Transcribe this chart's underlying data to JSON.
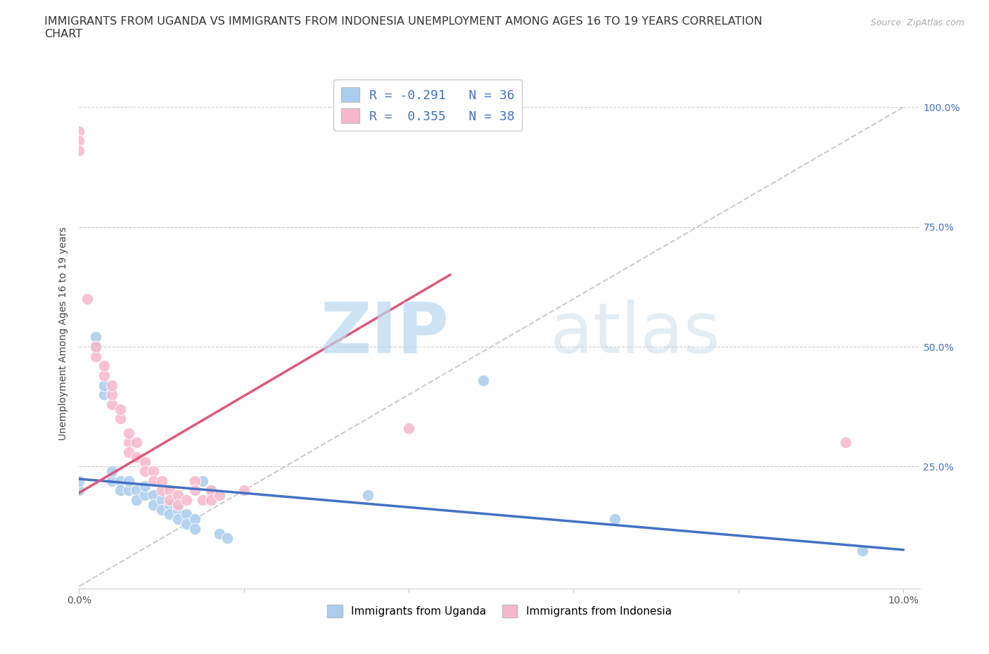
{
  "title": "IMMIGRANTS FROM UGANDA VS IMMIGRANTS FROM INDONESIA UNEMPLOYMENT AMONG AGES 16 TO 19 YEARS CORRELATION\nCHART",
  "source": "Source: ZipAtlas.com",
  "ylabel": "Unemployment Among Ages 16 to 19 years",
  "xlim": [
    0.0,
    0.102
  ],
  "ylim": [
    -0.005,
    1.06
  ],
  "watermark_zip": "ZIP",
  "watermark_atlas": "atlas",
  "legend_r1": "R = -0.291   N = 36",
  "legend_r2": "R =  0.355   N = 38",
  "color_uganda": "#aaccee",
  "color_indonesia": "#f8b8cc",
  "line_color_uganda": "#4472c4",
  "line_color_indonesia": "#e05878",
  "diag_color": "#cccccc",
  "background": "#ffffff",
  "title_fontsize": 11.5,
  "axis_label_fontsize": 10,
  "tick_fontsize": 10,
  "uganda_points": [
    [
      0.0,
      0.2
    ],
    [
      0.0,
      0.22
    ],
    [
      0.002,
      0.52
    ],
    [
      0.002,
      0.5
    ],
    [
      0.003,
      0.4
    ],
    [
      0.003,
      0.42
    ],
    [
      0.004,
      0.22
    ],
    [
      0.004,
      0.24
    ],
    [
      0.005,
      0.22
    ],
    [
      0.005,
      0.2
    ],
    [
      0.006,
      0.2
    ],
    [
      0.006,
      0.22
    ],
    [
      0.007,
      0.2
    ],
    [
      0.007,
      0.18
    ],
    [
      0.008,
      0.19
    ],
    [
      0.008,
      0.21
    ],
    [
      0.009,
      0.19
    ],
    [
      0.009,
      0.17
    ],
    [
      0.01,
      0.18
    ],
    [
      0.01,
      0.16
    ],
    [
      0.011,
      0.17
    ],
    [
      0.011,
      0.15
    ],
    [
      0.012,
      0.16
    ],
    [
      0.012,
      0.14
    ],
    [
      0.013,
      0.15
    ],
    [
      0.013,
      0.13
    ],
    [
      0.014,
      0.14
    ],
    [
      0.014,
      0.12
    ],
    [
      0.015,
      0.22
    ],
    [
      0.016,
      0.2
    ],
    [
      0.017,
      0.11
    ],
    [
      0.018,
      0.1
    ],
    [
      0.035,
      0.19
    ],
    [
      0.049,
      0.43
    ],
    [
      0.065,
      0.14
    ],
    [
      0.095,
      0.075
    ]
  ],
  "indonesia_points": [
    [
      0.0,
      0.95
    ],
    [
      0.0,
      0.93
    ],
    [
      0.0,
      0.91
    ],
    [
      0.001,
      0.6
    ],
    [
      0.002,
      0.48
    ],
    [
      0.002,
      0.5
    ],
    [
      0.003,
      0.44
    ],
    [
      0.003,
      0.46
    ],
    [
      0.004,
      0.38
    ],
    [
      0.004,
      0.4
    ],
    [
      0.004,
      0.42
    ],
    [
      0.005,
      0.35
    ],
    [
      0.005,
      0.37
    ],
    [
      0.006,
      0.3
    ],
    [
      0.006,
      0.28
    ],
    [
      0.006,
      0.32
    ],
    [
      0.007,
      0.3
    ],
    [
      0.007,
      0.27
    ],
    [
      0.008,
      0.26
    ],
    [
      0.008,
      0.24
    ],
    [
      0.009,
      0.24
    ],
    [
      0.009,
      0.22
    ],
    [
      0.01,
      0.22
    ],
    [
      0.01,
      0.2
    ],
    [
      0.011,
      0.2
    ],
    [
      0.011,
      0.18
    ],
    [
      0.012,
      0.19
    ],
    [
      0.012,
      0.17
    ],
    [
      0.013,
      0.18
    ],
    [
      0.014,
      0.22
    ],
    [
      0.014,
      0.2
    ],
    [
      0.015,
      0.18
    ],
    [
      0.016,
      0.2
    ],
    [
      0.016,
      0.18
    ],
    [
      0.017,
      0.19
    ],
    [
      0.02,
      0.2
    ],
    [
      0.04,
      0.33
    ],
    [
      0.093,
      0.3
    ]
  ],
  "uganda_line": [
    0.0,
    0.224,
    0.1,
    0.076
  ],
  "indonesia_line": [
    0.0,
    0.195,
    0.045,
    0.65
  ]
}
